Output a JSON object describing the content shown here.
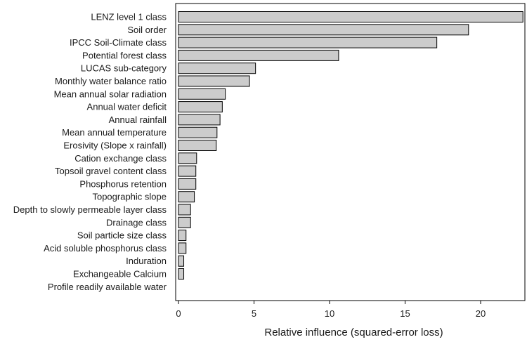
{
  "chart_data": {
    "type": "bar",
    "orientation": "horizontal",
    "title": "",
    "xlabel": "Relative influence (squared-error loss)",
    "ylabel": "",
    "xlim": [
      0,
      23
    ],
    "xticks": [
      0,
      5,
      10,
      15,
      20
    ],
    "grid": false,
    "bar_color": "#cccccc",
    "bar_edge_color": "#000000",
    "categories": [
      "LENZ level 1 class",
      "Soil order",
      "IPCC Soil-Climate class",
      "Potential forest class",
      "LUCAS sub-category",
      "Monthly water balance ratio",
      "Mean annual solar radiation",
      "Annual water deficit",
      "Annual rainfall",
      "Mean annual temperature",
      "Erosivity (Slope x rainfall)",
      "Cation exchange class",
      "Topsoil gravel content class",
      "Phosphorus retention",
      "Topographic slope",
      "Depth to slowly permeable layer class",
      "Drainage class",
      "Soil particle size class",
      "Acid soluble phosphorus class",
      "Induration",
      "Exchangeable Calcium",
      "Profile readily available water"
    ],
    "values": [
      22.8,
      19.2,
      17.1,
      10.6,
      5.1,
      4.7,
      3.1,
      2.9,
      2.75,
      2.55,
      2.5,
      1.2,
      1.15,
      1.15,
      1.05,
      0.8,
      0.8,
      0.5,
      0.5,
      0.35,
      0.35,
      0.0
    ]
  }
}
